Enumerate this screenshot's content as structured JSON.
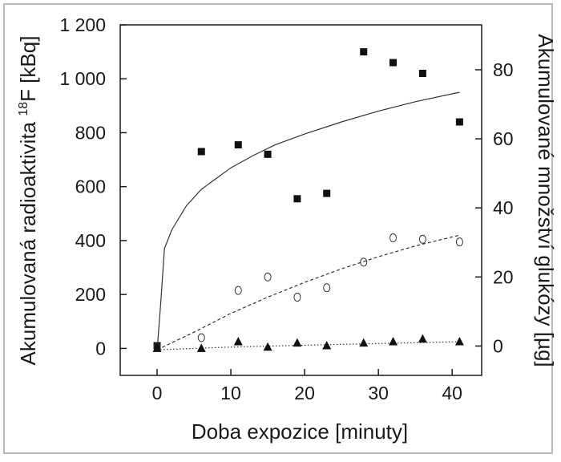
{
  "chart_data": {
    "type": "scatter",
    "xlabel": "Doba expozice [minuty]",
    "ylabel_left_prefix": "Akumulovaná radioaktivita ",
    "ylabel_left_sup": "18",
    "ylabel_left_suffix": "F [kBq]",
    "ylabel_right": "Akumulované množství glukózy [µg]",
    "xlim": [
      -5,
      44
    ],
    "ylim_left": [
      -100,
      1200
    ],
    "ylim_right": [
      -8.5,
      93
    ],
    "x_ticks": [
      0,
      10,
      20,
      30,
      40
    ],
    "x_tick_labels": [
      "0",
      "10",
      "20",
      "30",
      "40"
    ],
    "y_left_ticks": [
      0,
      200,
      400,
      600,
      800,
      1000,
      1200
    ],
    "y_left_tick_labels": [
      "0",
      "200",
      "400",
      "600",
      "800",
      "1 000",
      "1 200"
    ],
    "y_right_ticks": [
      0,
      20,
      40,
      60,
      80
    ],
    "y_right_tick_labels": [
      "0",
      "20",
      "40",
      "60",
      "80"
    ],
    "grid": false,
    "series": [
      {
        "marker": "square",
        "filled": true,
        "axis": "left",
        "points": [
          [
            0,
            10
          ],
          [
            6,
            730
          ],
          [
            11,
            755
          ],
          [
            15,
            720
          ],
          [
            19,
            555
          ],
          [
            23,
            575
          ],
          [
            28,
            1100
          ],
          [
            32,
            1060
          ],
          [
            36,
            1020
          ],
          [
            41,
            840
          ]
        ]
      },
      {
        "marker": "circle",
        "filled": false,
        "axis": "left",
        "points": [
          [
            0,
            5
          ],
          [
            6,
            40
          ],
          [
            11,
            215
          ],
          [
            15,
            265
          ],
          [
            19,
            190
          ],
          [
            23,
            225
          ],
          [
            28,
            320
          ],
          [
            32,
            410
          ],
          [
            36,
            405
          ],
          [
            41,
            395
          ]
        ]
      },
      {
        "marker": "triangle",
        "filled": true,
        "axis": "left",
        "points": [
          [
            0,
            0
          ],
          [
            6,
            0
          ],
          [
            11,
            25
          ],
          [
            15,
            5
          ],
          [
            19,
            20
          ],
          [
            23,
            10
          ],
          [
            28,
            20
          ],
          [
            32,
            25
          ],
          [
            36,
            35
          ],
          [
            41,
            25
          ]
        ]
      }
    ],
    "fit_lines": [
      {
        "style": "solid",
        "axis": "left",
        "points": [
          [
            0,
            -10
          ],
          [
            0.5,
            170
          ],
          [
            1,
            370
          ],
          [
            2,
            440
          ],
          [
            4,
            530
          ],
          [
            6,
            590
          ],
          [
            8,
            630
          ],
          [
            10,
            670
          ],
          [
            13,
            715
          ],
          [
            16,
            755
          ],
          [
            20,
            795
          ],
          [
            25,
            840
          ],
          [
            30,
            880
          ],
          [
            35,
            915
          ],
          [
            41,
            950
          ]
        ]
      },
      {
        "style": "dashed",
        "axis": "left",
        "points": [
          [
            0,
            -5
          ],
          [
            5,
            60
          ],
          [
            10,
            130
          ],
          [
            15,
            190
          ],
          [
            20,
            245
          ],
          [
            25,
            295
          ],
          [
            30,
            340
          ],
          [
            35,
            380
          ],
          [
            41,
            420
          ]
        ]
      },
      {
        "style": "dotted",
        "axis": "left",
        "points": [
          [
            0,
            -5
          ],
          [
            10,
            5
          ],
          [
            20,
            12
          ],
          [
            30,
            18
          ],
          [
            41,
            25
          ]
        ]
      }
    ]
  }
}
